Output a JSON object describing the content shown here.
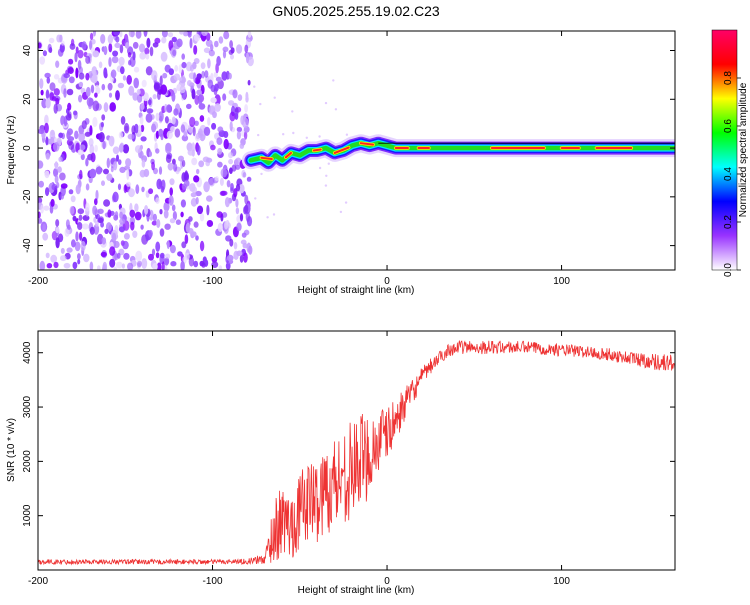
{
  "title": "GN05.2025.255.19.02.C23",
  "chart_data": [
    {
      "type": "heatmap",
      "title": "GN05.2025.255.19.02.C23",
      "xlabel": "Height of straight line (km)",
      "ylabel": "Frequency (Hz)",
      "xlim": [
        -200,
        165
      ],
      "ylim": [
        -50,
        48
      ],
      "x_ticks": [
        -200,
        -100,
        0,
        100
      ],
      "y_ticks": [
        -40,
        -20,
        0,
        20,
        40
      ],
      "x_tick_labels": [
        "-200",
        "-100",
        "0",
        "100"
      ],
      "y_tick_labels": [
        "-40",
        "-20",
        "0",
        "20",
        "40"
      ],
      "noise_region_x": [
        -200,
        -78
      ],
      "signal_trace": [
        {
          "x": -78,
          "y": -5
        },
        {
          "x": -72,
          "y": -4
        },
        {
          "x": -68,
          "y": -6
        },
        {
          "x": -64,
          "y": -3
        },
        {
          "x": -60,
          "y": -5
        },
        {
          "x": -55,
          "y": -2
        },
        {
          "x": -50,
          "y": -3
        },
        {
          "x": -45,
          "y": -1
        },
        {
          "x": -40,
          "y": -1
        },
        {
          "x": -35,
          "y": 0
        },
        {
          "x": -30,
          "y": -2
        },
        {
          "x": -25,
          "y": -1
        },
        {
          "x": -20,
          "y": 1
        },
        {
          "x": -15,
          "y": 2
        },
        {
          "x": -10,
          "y": 1
        },
        {
          "x": -5,
          "y": 2
        },
        {
          "x": 0,
          "y": 1
        },
        {
          "x": 5,
          "y": 0
        },
        {
          "x": 10,
          "y": 0
        },
        {
          "x": 20,
          "y": 0
        },
        {
          "x": 40,
          "y": 0
        },
        {
          "x": 60,
          "y": 0
        },
        {
          "x": 80,
          "y": 0
        },
        {
          "x": 100,
          "y": 0
        },
        {
          "x": 120,
          "y": 0
        },
        {
          "x": 140,
          "y": 0
        },
        {
          "x": 165,
          "y": 0
        }
      ],
      "colorbar": {
        "label": "Normalized spectral amplitude",
        "range": [
          0,
          1
        ],
        "ticks": [
          0.0,
          0.2,
          0.4,
          0.6,
          0.8
        ],
        "tick_labels": [
          "0.0",
          "0.2",
          "0.4",
          "0.6",
          "0.8"
        ],
        "colors": [
          "#ffffff",
          "#9933ff",
          "#0000ff",
          "#00ffff",
          "#00ff00",
          "#ffff00",
          "#ff0000",
          "#ff0066"
        ]
      }
    },
    {
      "type": "line",
      "xlabel": "Height of straight line (km)",
      "ylabel": "SNR (10 * v/v)",
      "xlim": [
        -200,
        165
      ],
      "ylim": [
        0,
        4400
      ],
      "x_ticks": [
        -200,
        -100,
        0,
        100
      ],
      "y_ticks": [
        1000,
        2000,
        3000,
        4000
      ],
      "x_tick_labels": [
        "-200",
        "-100",
        "0",
        "100"
      ],
      "y_tick_labels": [
        "1000",
        "2000",
        "3000",
        "4000"
      ],
      "color": "#ee3333",
      "series": [
        {
          "name": "SNR",
          "x": [
            -200,
            -180,
            -160,
            -140,
            -120,
            -100,
            -80,
            -70,
            -65,
            -60,
            -55,
            -50,
            -45,
            -40,
            -35,
            -30,
            -25,
            -20,
            -15,
            -10,
            -5,
            0,
            5,
            10,
            15,
            20,
            25,
            30,
            35,
            40,
            50,
            60,
            80,
            100,
            120,
            140,
            150,
            165
          ],
          "values": [
            150,
            150,
            150,
            150,
            150,
            150,
            160,
            200,
            700,
            900,
            800,
            1100,
            1300,
            1250,
            1500,
            1600,
            1750,
            1850,
            2000,
            2150,
            2350,
            2500,
            2750,
            3050,
            3300,
            3550,
            3750,
            3900,
            4050,
            4100,
            4100,
            4100,
            4100,
            4050,
            4000,
            3900,
            3850,
            3800
          ],
          "noise_amplitude": [
            90,
            90,
            90,
            90,
            90,
            90,
            100,
            200,
            1200,
            1300,
            1300,
            1400,
            1500,
            1500,
            1700,
            1800,
            1800,
            1800,
            1800,
            1600,
            1300,
            1000,
            800,
            600,
            450,
            350,
            300,
            250,
            250,
            250,
            250,
            250,
            230,
            230,
            230,
            250,
            300,
            350
          ]
        }
      ]
    }
  ]
}
